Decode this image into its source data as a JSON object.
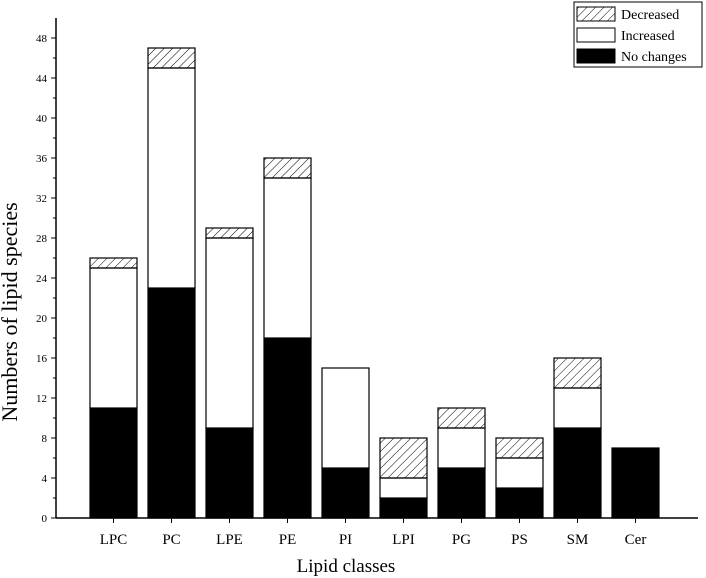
{
  "chart_data": {
    "type": "bar",
    "stacked": true,
    "categories": [
      "LPC",
      "PC",
      "LPE",
      "PE",
      "PI",
      "LPI",
      "PG",
      "PS",
      "SM",
      "Cer"
    ],
    "series": [
      {
        "name": "No changes",
        "values": [
          11,
          23,
          9,
          18,
          5,
          2,
          5,
          3,
          9,
          7
        ],
        "fill": "solid-black"
      },
      {
        "name": "Increased",
        "values": [
          14,
          22,
          19,
          16,
          10,
          2,
          4,
          3,
          4,
          0
        ],
        "fill": "white"
      },
      {
        "name": "Decreased",
        "values": [
          1,
          2,
          1,
          2,
          0,
          4,
          2,
          2,
          3,
          0
        ],
        "fill": "hatched"
      }
    ],
    "legend_order": [
      "Decreased",
      "Increased",
      "No changes"
    ],
    "xlabel": "Lipid classes",
    "ylabel": "Numbers of lipid species",
    "ylim": [
      0,
      50
    ],
    "yticks": [
      0,
      4,
      8,
      12,
      16,
      20,
      24,
      28,
      32,
      36,
      40,
      44,
      48
    ],
    "grid": false,
    "legend_position": "top-right"
  }
}
